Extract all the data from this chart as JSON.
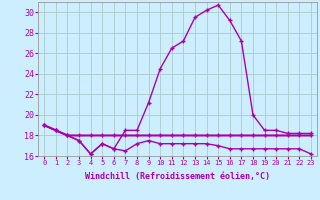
{
  "hours": [
    0,
    1,
    2,
    3,
    4,
    5,
    6,
    7,
    8,
    9,
    10,
    11,
    12,
    13,
    14,
    15,
    16,
    17,
    18,
    19,
    20,
    21,
    22,
    23
  ],
  "line_temp": [
    19,
    18.5,
    18,
    18,
    18,
    18,
    18,
    18,
    18,
    18,
    18,
    18,
    18,
    18,
    18,
    18,
    18,
    18,
    18,
    18,
    18,
    18,
    18,
    18
  ],
  "line_wc_low": [
    19,
    18.5,
    18,
    17.5,
    16.2,
    17.2,
    16.7,
    16.5,
    17.2,
    17.5,
    17.2,
    17.2,
    17.2,
    17.2,
    17.2,
    17.0,
    16.7,
    16.7,
    16.7,
    16.7,
    16.7,
    16.7,
    16.7,
    16.2
  ],
  "line_main": [
    19,
    18.5,
    18,
    17.5,
    16.2,
    17.2,
    16.7,
    18.5,
    18.5,
    21.2,
    24.5,
    26.5,
    27.2,
    29.5,
    30.2,
    30.7,
    29.2,
    27.2,
    20.0,
    18.5,
    18.5,
    18.2,
    18.2,
    18.2
  ],
  "bg_color": "#cceeff",
  "grid_color": "#aacccc",
  "line_color": "#aa00aa",
  "xlabel": "Windchill (Refroidissement éolien,°C)",
  "ylim": [
    16,
    31
  ],
  "xlim_min": -0.5,
  "xlim_max": 23.5,
  "yticks": [
    16,
    18,
    20,
    22,
    24,
    26,
    28,
    30
  ],
  "xticks": [
    0,
    1,
    2,
    3,
    4,
    5,
    6,
    7,
    8,
    9,
    10,
    11,
    12,
    13,
    14,
    15,
    16,
    17,
    18,
    19,
    20,
    21,
    22,
    23
  ]
}
